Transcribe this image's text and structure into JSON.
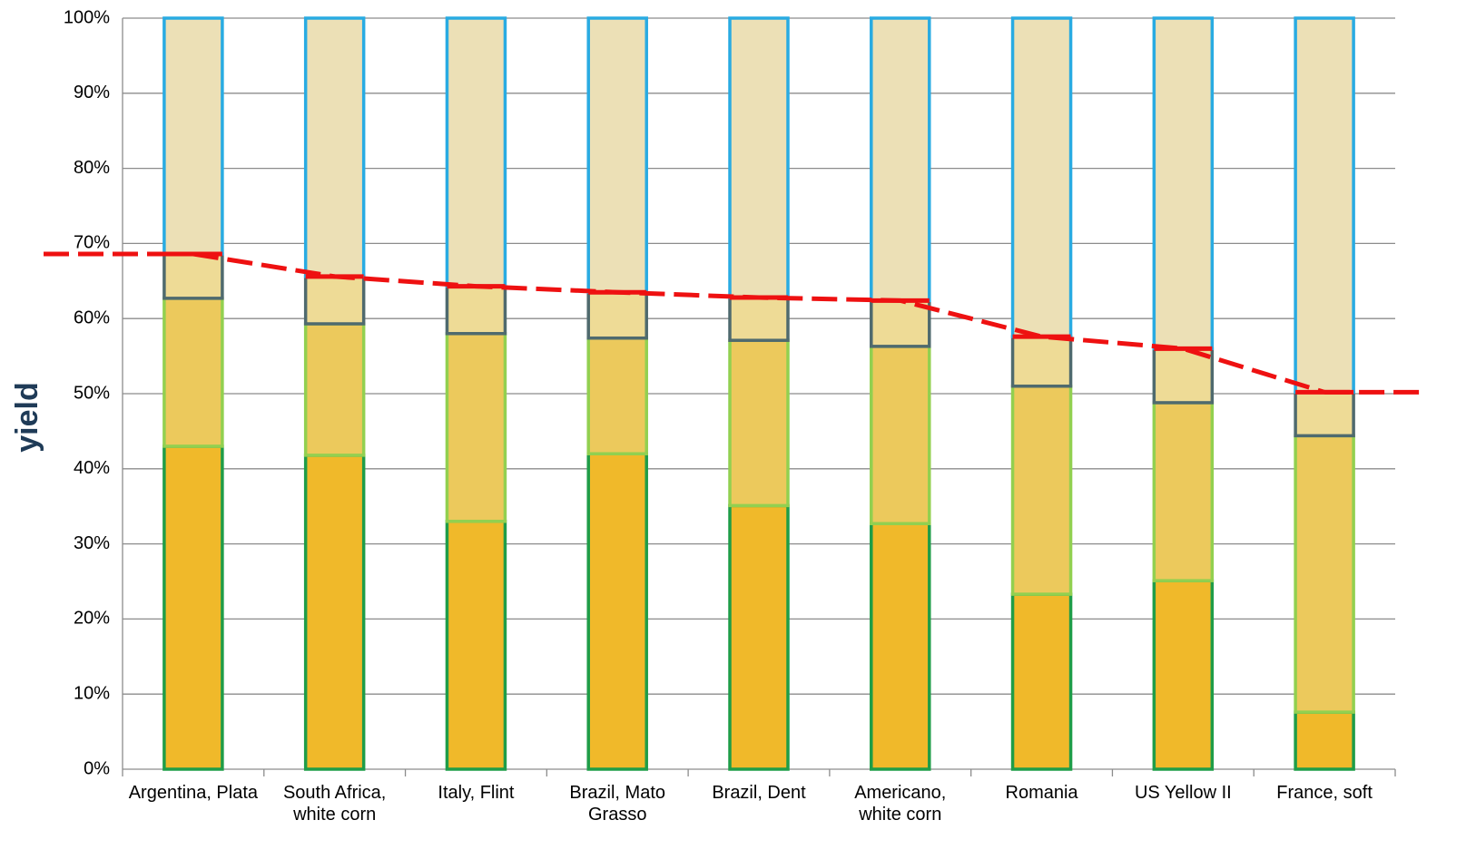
{
  "chart_data": {
    "type": "bar",
    "stacked": true,
    "y_label": "yield",
    "categories": [
      "Argentina, Plata",
      "South Africa, white corn",
      "Italy, Flint",
      "Brazil, Mato Grasso",
      "Brazil, Dent",
      "Americano, white corn",
      "Romania",
      "US Yellow II",
      "France, soft"
    ],
    "series": [
      {
        "fill": "#f0b92a",
        "color": "#1f9d48",
        "values": [
          43.0,
          41.8,
          33.0,
          42.0,
          35.1,
          32.7,
          23.3,
          25.1,
          7.6
        ]
      },
      {
        "fill": "#ecc95c",
        "color": "#92d050",
        "values": [
          19.7,
          17.5,
          25.0,
          15.4,
          22.0,
          23.6,
          27.7,
          23.7,
          36.8
        ]
      },
      {
        "fill": "#eedb96",
        "color": "#4f6a6e",
        "values": [
          5.9,
          6.3,
          6.3,
          6.1,
          5.7,
          6.1,
          6.6,
          7.2,
          5.8
        ]
      },
      {
        "fill": "#ece0b6",
        "color": "#29abe2",
        "values": [
          31.4,
          34.4,
          35.7,
          36.5,
          37.2,
          37.6,
          42.4,
          44.0,
          49.8
        ]
      }
    ],
    "line": {
      "type": "line",
      "color": "#ee1111",
      "values": [
        68.6,
        65.6,
        64.3,
        63.5,
        62.8,
        62.4,
        57.6,
        56.0,
        50.2
      ]
    },
    "ylim": [
      0,
      100
    ],
    "yticks": [
      {
        "value": 0,
        "label": "0%"
      },
      {
        "value": 10,
        "label": "10%"
      },
      {
        "value": 20,
        "label": "20%"
      },
      {
        "value": 30,
        "label": "30%"
      },
      {
        "value": 40,
        "label": "40%"
      },
      {
        "value": 50,
        "label": "50%"
      },
      {
        "value": 60,
        "label": "60%"
      },
      {
        "value": 70,
        "label": "70%"
      },
      {
        "value": 80,
        "label": "80%"
      },
      {
        "value": 90,
        "label": "90%"
      },
      {
        "value": 100,
        "label": "100%"
      }
    ],
    "grid": true
  }
}
